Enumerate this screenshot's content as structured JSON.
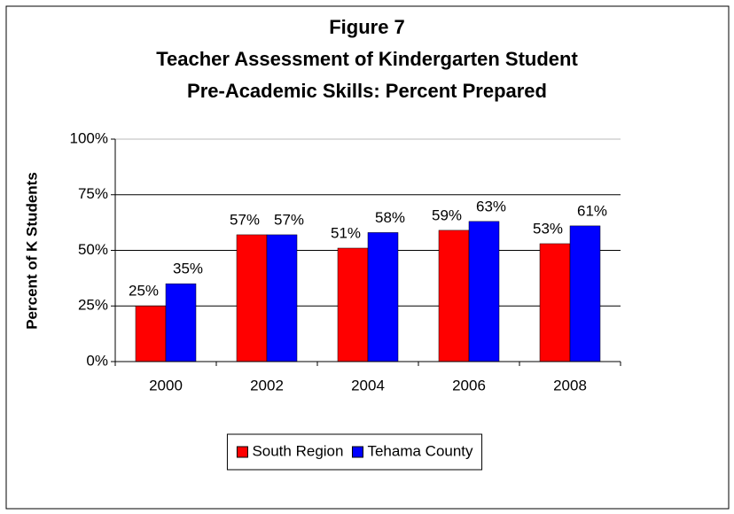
{
  "chart_data": {
    "type": "bar",
    "title": [
      "Figure 7",
      "Teacher Assessment of Kindergarten Student",
      "Pre-Academic Skills: Percent Prepared"
    ],
    "ylabel": "Percent of K Students",
    "categories": [
      "2000",
      "2002",
      "2004",
      "2006",
      "2008"
    ],
    "series": [
      {
        "name": "South Region",
        "color": "#ff0000",
        "values": [
          25,
          57,
          51,
          59,
          53
        ],
        "value_labels": [
          "25%",
          "57%",
          "51%",
          "59%",
          "53%"
        ]
      },
      {
        "name": "Tehama County",
        "color": "#0000ff",
        "values": [
          35,
          57,
          58,
          63,
          61
        ],
        "value_labels": [
          "35%",
          "57%",
          "58%",
          "63%",
          "61%"
        ]
      }
    ],
    "ylim": [
      0,
      100
    ],
    "yticks": [
      {
        "value": 0,
        "label": "0%"
      },
      {
        "value": 25,
        "label": "25%"
      },
      {
        "value": 50,
        "label": "50%"
      },
      {
        "value": 75,
        "label": "75%"
      },
      {
        "value": 100,
        "label": "100%"
      }
    ],
    "grid": true,
    "legend": "bottom"
  }
}
